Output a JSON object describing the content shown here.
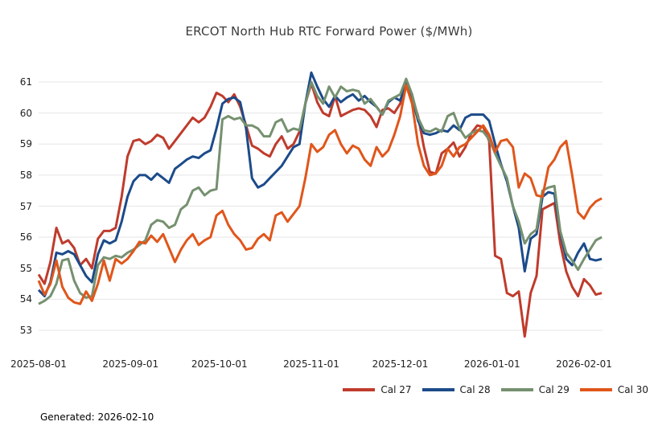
{
  "footer": {
    "generated_label": "Generated: 2026-02-10"
  },
  "chart_data": {
    "type": "line",
    "title": "ERCOT North Hub RTC Forward Power ($/MWh)",
    "xlabel": "",
    "ylabel": "",
    "grid": "horizontal-only",
    "legend_position": "bottom-right",
    "ylim": [
      52.6,
      61.5
    ],
    "y_ticks": [
      53,
      54,
      55,
      56,
      57,
      58,
      59,
      60,
      61
    ],
    "x_ticks": [
      {
        "label": "2025-08-01",
        "day": 0
      },
      {
        "label": "2025-09-01",
        "day": 31
      },
      {
        "label": "2025-10-01",
        "day": 61
      },
      {
        "label": "2025-11-01",
        "day": 92
      },
      {
        "label": "2025-12-01",
        "day": 122
      },
      {
        "label": "2026-01-01",
        "day": 153
      },
      {
        "label": "2026-02-01",
        "day": 184
      }
    ],
    "x_start_day": 0,
    "x_step_days": 2,
    "x_end_day": 190,
    "series": [
      {
        "name": "Cal 27",
        "color": "#bf3b2c",
        "values": [
          54.8,
          54.5,
          55.2,
          56.3,
          55.8,
          55.9,
          55.65,
          55.1,
          55.3,
          55.0,
          55.95,
          56.2,
          56.2,
          56.3,
          57.3,
          58.6,
          59.1,
          59.15,
          59.0,
          59.1,
          59.3,
          59.2,
          58.85,
          59.1,
          59.35,
          59.6,
          59.85,
          59.7,
          59.85,
          60.2,
          60.65,
          60.55,
          60.35,
          60.6,
          60.2,
          59.6,
          58.95,
          58.85,
          58.7,
          58.6,
          59.0,
          59.25,
          58.85,
          59.0,
          59.4,
          60.3,
          60.95,
          60.35,
          60.0,
          59.9,
          60.55,
          59.9,
          60.0,
          60.1,
          60.15,
          60.1,
          59.9,
          59.55,
          60.1,
          60.15,
          60.0,
          60.3,
          60.95,
          60.5,
          59.9,
          58.9,
          58.1,
          58.05,
          58.7,
          58.85,
          59.05,
          58.6,
          58.9,
          59.35,
          59.6,
          59.55,
          59.1,
          55.4,
          55.3,
          54.2,
          54.1,
          54.25,
          52.8,
          54.2,
          54.75,
          56.9,
          57.0,
          57.1,
          55.8,
          54.9,
          54.4,
          54.1,
          54.65,
          54.45,
          54.15,
          54.2
        ]
      },
      {
        "name": "Cal 28",
        "color": "#1c4b8a",
        "values": [
          54.3,
          54.1,
          54.55,
          55.5,
          55.45,
          55.55,
          55.45,
          55.1,
          54.75,
          54.55,
          55.45,
          55.9,
          55.8,
          55.9,
          56.5,
          57.3,
          57.8,
          58.0,
          58.0,
          57.85,
          58.05,
          57.9,
          57.75,
          58.2,
          58.35,
          58.5,
          58.6,
          58.55,
          58.7,
          58.8,
          59.5,
          60.3,
          60.45,
          60.5,
          60.35,
          59.5,
          57.9,
          57.6,
          57.7,
          57.9,
          58.1,
          58.3,
          58.6,
          58.9,
          59.0,
          60.3,
          61.3,
          60.85,
          60.45,
          60.2,
          60.55,
          60.35,
          60.5,
          60.6,
          60.4,
          60.55,
          60.35,
          60.2,
          59.95,
          60.35,
          60.5,
          60.4,
          61.0,
          60.5,
          59.75,
          59.35,
          59.3,
          59.35,
          59.45,
          59.4,
          59.6,
          59.45,
          59.85,
          59.95,
          59.95,
          59.95,
          59.75,
          59.0,
          58.35,
          57.8,
          57.0,
          56.3,
          54.9,
          55.95,
          56.1,
          57.3,
          57.45,
          57.4,
          56.15,
          55.3,
          55.1,
          55.5,
          55.8,
          55.3,
          55.25,
          55.3
        ]
      },
      {
        "name": "Cal 29",
        "color": "#75906f",
        "values": [
          53.85,
          53.95,
          54.1,
          54.5,
          55.25,
          55.3,
          54.6,
          54.2,
          54.05,
          54.1,
          55.1,
          55.35,
          55.3,
          55.4,
          55.35,
          55.5,
          55.6,
          55.75,
          55.9,
          56.4,
          56.55,
          56.5,
          56.3,
          56.4,
          56.9,
          57.05,
          57.5,
          57.6,
          57.35,
          57.5,
          57.55,
          59.8,
          59.9,
          59.8,
          59.85,
          59.6,
          59.6,
          59.5,
          59.25,
          59.25,
          59.7,
          59.8,
          59.4,
          59.5,
          59.45,
          60.3,
          61.0,
          60.55,
          60.3,
          60.85,
          60.5,
          60.85,
          60.7,
          60.75,
          60.7,
          60.3,
          60.45,
          60.2,
          59.95,
          60.4,
          60.5,
          60.6,
          61.1,
          60.6,
          59.85,
          59.45,
          59.4,
          59.5,
          59.4,
          59.9,
          60.0,
          59.5,
          59.2,
          59.35,
          59.45,
          59.4,
          59.15,
          58.7,
          58.3,
          57.9,
          57.0,
          56.5,
          55.8,
          56.1,
          56.25,
          57.5,
          57.6,
          57.65,
          56.2,
          55.5,
          55.25,
          54.95,
          55.3,
          55.6,
          55.9,
          56.0
        ]
      },
      {
        "name": "Cal 30",
        "color": "#e0561b",
        "values": [
          54.6,
          54.15,
          54.5,
          55.25,
          54.4,
          54.05,
          53.9,
          53.85,
          54.25,
          53.95,
          54.5,
          55.25,
          54.6,
          55.3,
          55.15,
          55.3,
          55.55,
          55.85,
          55.8,
          56.05,
          55.85,
          56.1,
          55.65,
          55.2,
          55.6,
          55.9,
          56.1,
          55.75,
          55.9,
          56.0,
          56.7,
          56.85,
          56.4,
          56.1,
          55.9,
          55.6,
          55.65,
          55.95,
          56.1,
          55.9,
          56.7,
          56.8,
          56.5,
          56.75,
          57.0,
          57.9,
          59.0,
          58.75,
          58.9,
          59.3,
          59.45,
          59.0,
          58.7,
          58.95,
          58.85,
          58.5,
          58.3,
          58.9,
          58.6,
          58.8,
          59.3,
          59.9,
          60.9,
          60.3,
          59.0,
          58.3,
          58.0,
          58.05,
          58.3,
          58.85,
          58.6,
          58.9,
          59.0,
          59.2,
          59.4,
          59.6,
          59.3,
          58.75,
          59.1,
          59.15,
          58.9,
          57.6,
          58.05,
          57.9,
          57.35,
          57.3,
          58.25,
          58.5,
          58.9,
          59.1,
          58.0,
          56.8,
          56.6,
          56.95,
          57.15,
          57.25
        ]
      }
    ]
  }
}
